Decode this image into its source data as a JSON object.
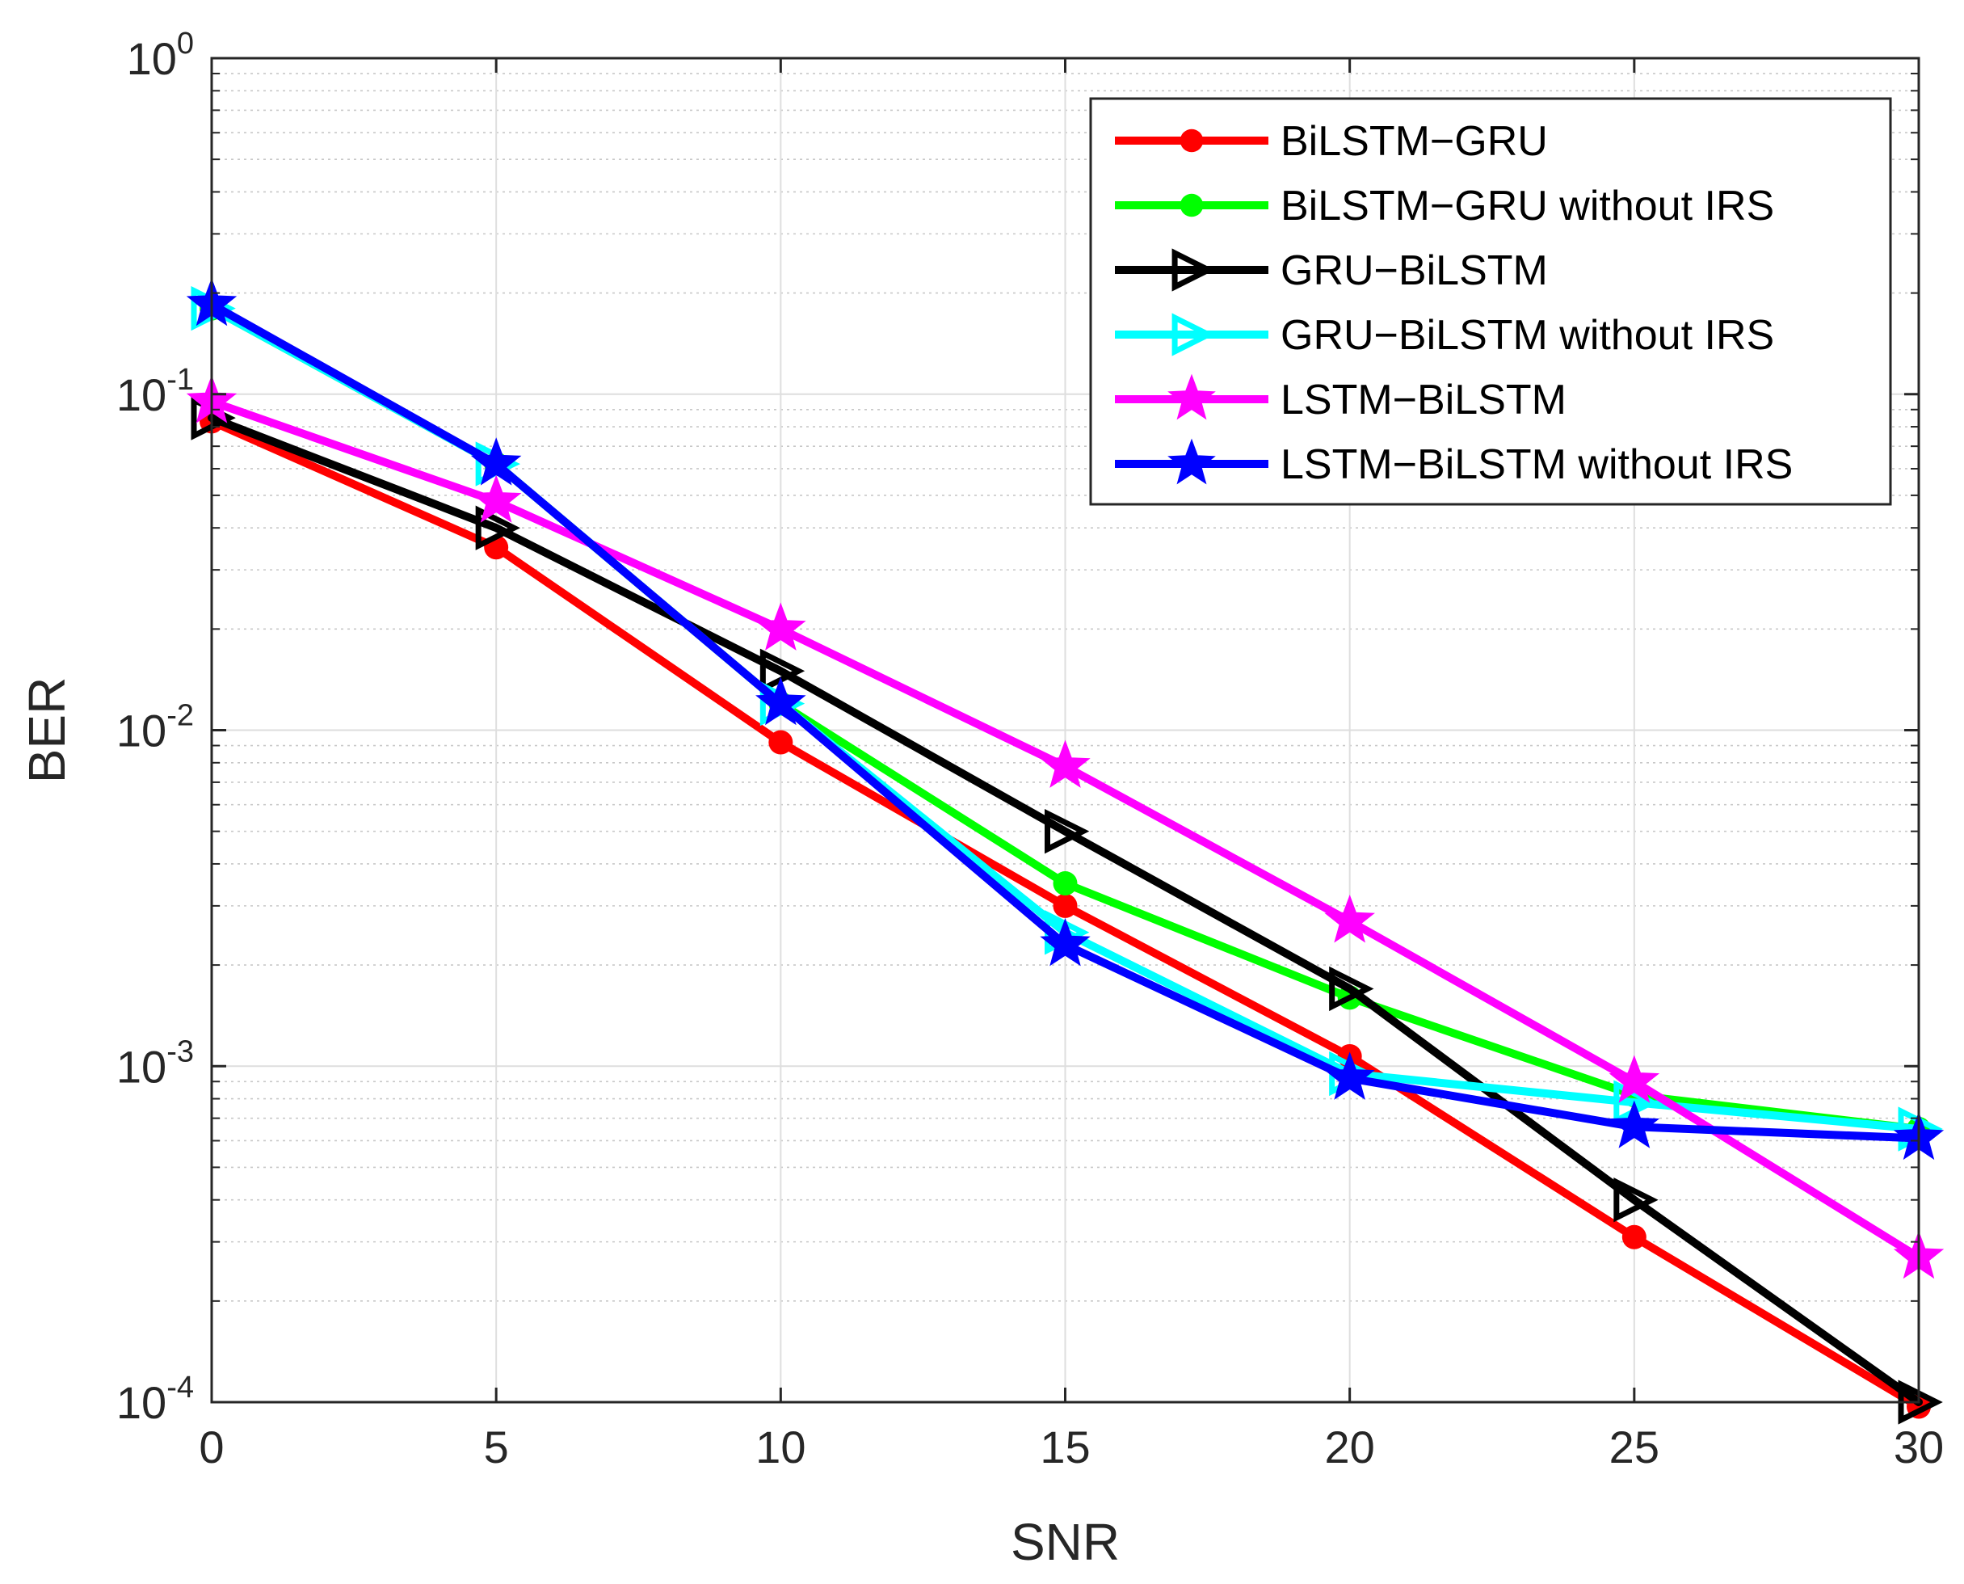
{
  "chart_data": {
    "type": "line",
    "title": "",
    "xlabel": "SNR",
    "ylabel": "BER",
    "xlim": [
      0,
      30
    ],
    "ylim": [
      0.0001,
      1
    ],
    "yscale": "log",
    "grid": true,
    "minor_grid": true,
    "legend_position": "top-right",
    "x_ticks": [
      {
        "value": 0,
        "label": "0"
      },
      {
        "value": 5,
        "label": "5"
      },
      {
        "value": 10,
        "label": "10"
      },
      {
        "value": 15,
        "label": "15"
      },
      {
        "value": 20,
        "label": "20"
      },
      {
        "value": 25,
        "label": "25"
      },
      {
        "value": 30,
        "label": "30"
      }
    ],
    "y_ticks": [
      {
        "value": 1,
        "base": "10",
        "exp": "0"
      },
      {
        "value": 0.1,
        "base": "10",
        "exp": "-1"
      },
      {
        "value": 0.01,
        "base": "10",
        "exp": "-2"
      },
      {
        "value": 0.001,
        "base": "10",
        "exp": "-3"
      },
      {
        "value": 0.0001,
        "base": "10",
        "exp": "-4"
      }
    ],
    "x": [
      0,
      5,
      10,
      15,
      20,
      25,
      30
    ],
    "series": [
      {
        "name": "BiLSTM−GRU",
        "color": "#ff0000",
        "marker": "circle",
        "values": [
          0.083,
          0.035,
          0.0092,
          0.003,
          0.00107,
          0.00031,
          9.7e-05
        ]
      },
      {
        "name": "BiLSTM−GRU without IRS",
        "color": "#00ff00",
        "marker": "circle",
        "values": [
          0.18,
          0.062,
          0.012,
          0.0035,
          0.0016,
          0.00082,
          0.00065
        ]
      },
      {
        "name": "GRU−BiLSTM",
        "color": "#000000",
        "marker": "triangle-right",
        "values": [
          0.085,
          0.04,
          0.015,
          0.005,
          0.0017,
          0.0004,
          0.0001
        ]
      },
      {
        "name": "GRU−BiLSTM without IRS",
        "color": "#00ffff",
        "marker": "triangle-right",
        "values": [
          0.18,
          0.062,
          0.012,
          0.0025,
          0.00095,
          0.00078,
          0.00065
        ]
      },
      {
        "name": "LSTM−BiLSTM",
        "color": "#ff00ff",
        "marker": "star",
        "values": [
          0.095,
          0.048,
          0.02,
          0.0078,
          0.0027,
          0.0009,
          0.00027
        ]
      },
      {
        "name": "LSTM−BiLSTM without IRS",
        "color": "#0000ff",
        "marker": "star",
        "values": [
          0.185,
          0.062,
          0.012,
          0.0023,
          0.00092,
          0.00066,
          0.00061
        ]
      }
    ]
  }
}
